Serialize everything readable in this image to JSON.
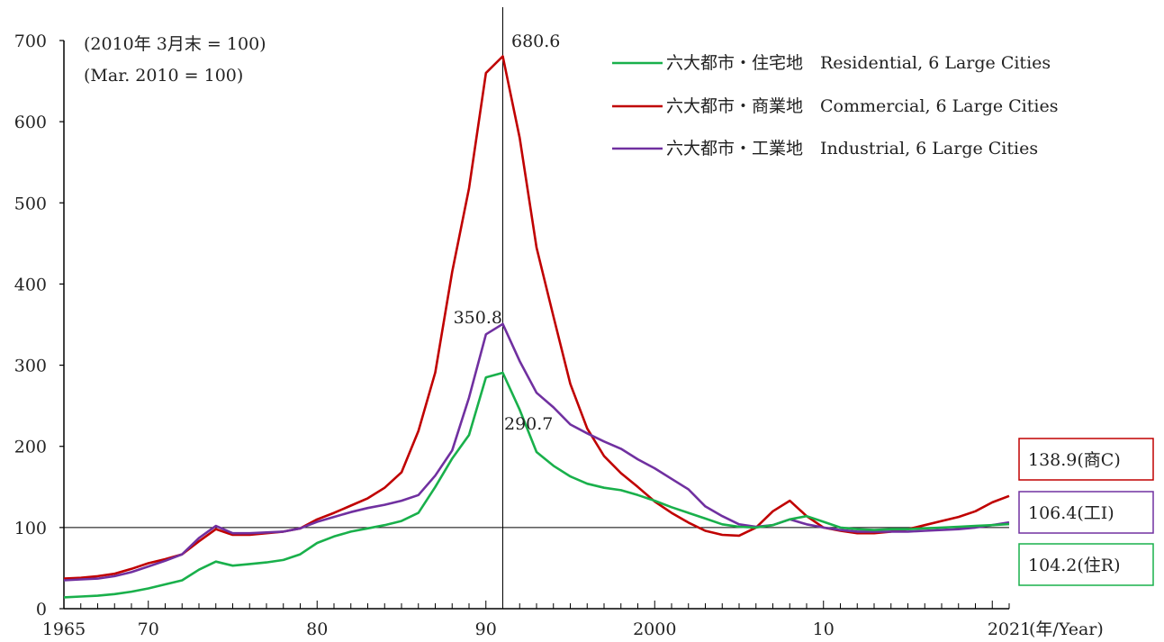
{
  "chart_data": {
    "type": "line",
    "notes": [
      "(2010年 3月末 = 100)",
      "(Mar.  2010 = 100)"
    ],
    "x_tick_labels": [
      "1965",
      "70",
      "80",
      "90",
      "2000",
      "10",
      "2021"
    ],
    "x_unit_label": "(年/Year)",
    "y_tick_labels": [
      "0",
      "100",
      "200",
      "300",
      "400",
      "500",
      "600",
      "700"
    ],
    "xlim": [
      1965,
      2021
    ],
    "ylim": [
      0,
      700
    ],
    "reference_line_y": 100,
    "reference_line_x": 1991,
    "x": [
      1965,
      1966,
      1967,
      1968,
      1969,
      1970,
      1971,
      1972,
      1973,
      1974,
      1975,
      1976,
      1977,
      1978,
      1979,
      1980,
      1981,
      1982,
      1983,
      1984,
      1985,
      1986,
      1987,
      1988,
      1989,
      1990,
      1991,
      1992,
      1993,
      1994,
      1995,
      1996,
      1997,
      1998,
      1999,
      2000,
      2001,
      2002,
      2003,
      2004,
      2005,
      2006,
      2007,
      2008,
      2009,
      2010,
      2011,
      2012,
      2013,
      2014,
      2015,
      2016,
      2017,
      2018,
      2019,
      2020,
      2021
    ],
    "series": [
      {
        "name": "六大都市・住宅地 Residential, 6 Large Cities",
        "legend_label": "六大都市・住宅地　Residential, 6 Large Cities",
        "color": "#19b04b",
        "values": [
          14,
          15,
          16,
          18,
          21,
          25,
          30,
          35,
          48,
          58,
          53,
          55,
          57,
          60,
          67,
          81,
          89,
          95,
          99,
          103,
          108,
          118,
          150,
          185,
          214,
          285,
          290.7,
          245,
          193,
          176,
          163,
          154,
          149,
          146,
          140,
          133,
          125,
          118,
          111,
          104,
          101,
          100,
          103,
          110,
          114,
          107,
          100,
          98,
          97,
          98,
          98,
          99,
          100,
          101,
          102,
          103,
          104.2
        ]
      },
      {
        "name": "六大都市・商業地 Commercial, 6 Large Cities",
        "legend_label": "六大都市・商業地　Commercial, 6 Large Cities",
        "color": "#c00000",
        "values": [
          37,
          38,
          40,
          43,
          49,
          56,
          61,
          67,
          83,
          98,
          91,
          91,
          93,
          95,
          99,
          110,
          118,
          127,
          136,
          149,
          168,
          219,
          291,
          415,
          518,
          660,
          680.6,
          580,
          445,
          360,
          277,
          222,
          188,
          167,
          150,
          132,
          118,
          106,
          96,
          91,
          90,
          100,
          120,
          133,
          114,
          100,
          96,
          93,
          93,
          95,
          98,
          103,
          108,
          113,
          120,
          131,
          138.9
        ]
      },
      {
        "name": "六大都市・工業地 Industrial, 6 Large Cities",
        "legend_label": "六大都市・工業地　Industrial, 6 Large Cities",
        "color": "#7030a0",
        "values": [
          35,
          36,
          37,
          40,
          45,
          52,
          59,
          67,
          87,
          102,
          93,
          93,
          94,
          95,
          99,
          107,
          113,
          119,
          124,
          128,
          133,
          140,
          164,
          195,
          260,
          338,
          350.8,
          305,
          266,
          248,
          227,
          216,
          206,
          197,
          184,
          173,
          160,
          147,
          126,
          114,
          104,
          101,
          103,
          110,
          104,
          100,
          97,
          95,
          95,
          95,
          95,
          96,
          97,
          98,
          100,
          103,
          106.4
        ]
      }
    ],
    "annotations": [
      {
        "text": "680.6",
        "x": 1991,
        "y": 680.6,
        "series": "commercial"
      },
      {
        "text": "350.8",
        "x": 1990,
        "y": 350.8,
        "series": "industrial"
      },
      {
        "text": "290.7",
        "x": 1991,
        "y": 290.7,
        "series": "residential"
      }
    ],
    "end_labels": [
      {
        "text": "138.9(商C)",
        "color": "#c00000"
      },
      {
        "text": "106.4(工I)",
        "color": "#7030a0"
      },
      {
        "text": "104.2(住R)",
        "color": "#19b04b"
      }
    ],
    "legend_position": "top-right",
    "grid": false
  }
}
